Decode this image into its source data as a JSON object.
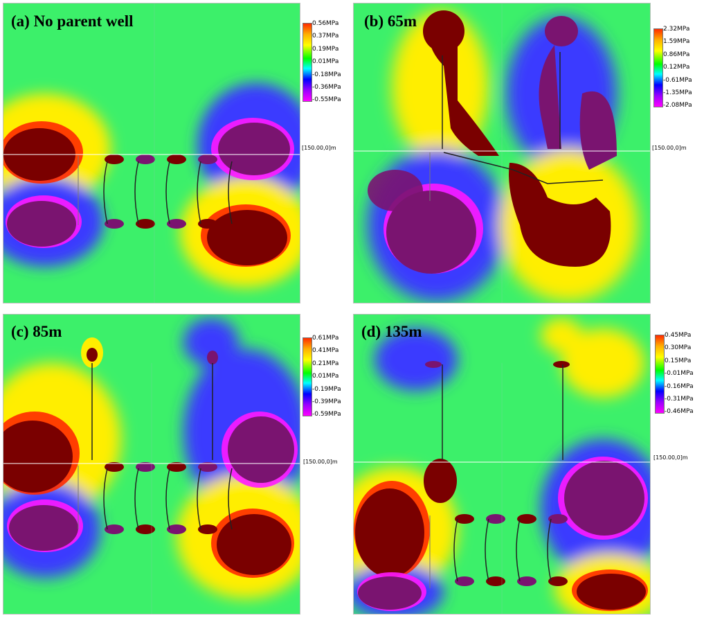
{
  "panels": [
    {
      "label": "(a) No parent well",
      "legend": [
        "0.56MPa",
        "0.37MPa",
        "0.19MPa",
        "0.01MPa",
        "-0.18MPa",
        "-0.36MPa",
        "-0.55MPa"
      ],
      "coord": "[150.00,0]m"
    },
    {
      "label": "(b) 65m",
      "legend": [
        "2.32MPa",
        "1.59MPa",
        "0.86MPa",
        "0.12MPa",
        "-0.61MPa",
        "-1.35MPa",
        "-2.08MPa"
      ],
      "coord": "[150.00,0]m"
    },
    {
      "label": "(c) 85m",
      "legend": [
        "0.61MPa",
        "0.41MPa",
        "0.21MPa",
        "0.01MPa",
        "-0.19MPa",
        "-0.39MPa",
        "-0.59MPa"
      ],
      "coord": "[150.00,0]m"
    },
    {
      "label": "(d) 135m",
      "legend": [
        "0.45MPa",
        "0.30MPa",
        "0.15MPa",
        "-0.01MPa",
        "-0.16MPa",
        "-0.31MPa",
        "-0.46MPa"
      ],
      "coord": "[150.00,0]m"
    }
  ],
  "colors": {
    "field": "#3cf06a",
    "high": "#7a0000",
    "low": "#7a1470",
    "red": "#ff2a00",
    "magenta": "#ff1aff",
    "blue": "#3a3aff",
    "cyan": "#22e6e6",
    "yellow": "#ffee00"
  }
}
